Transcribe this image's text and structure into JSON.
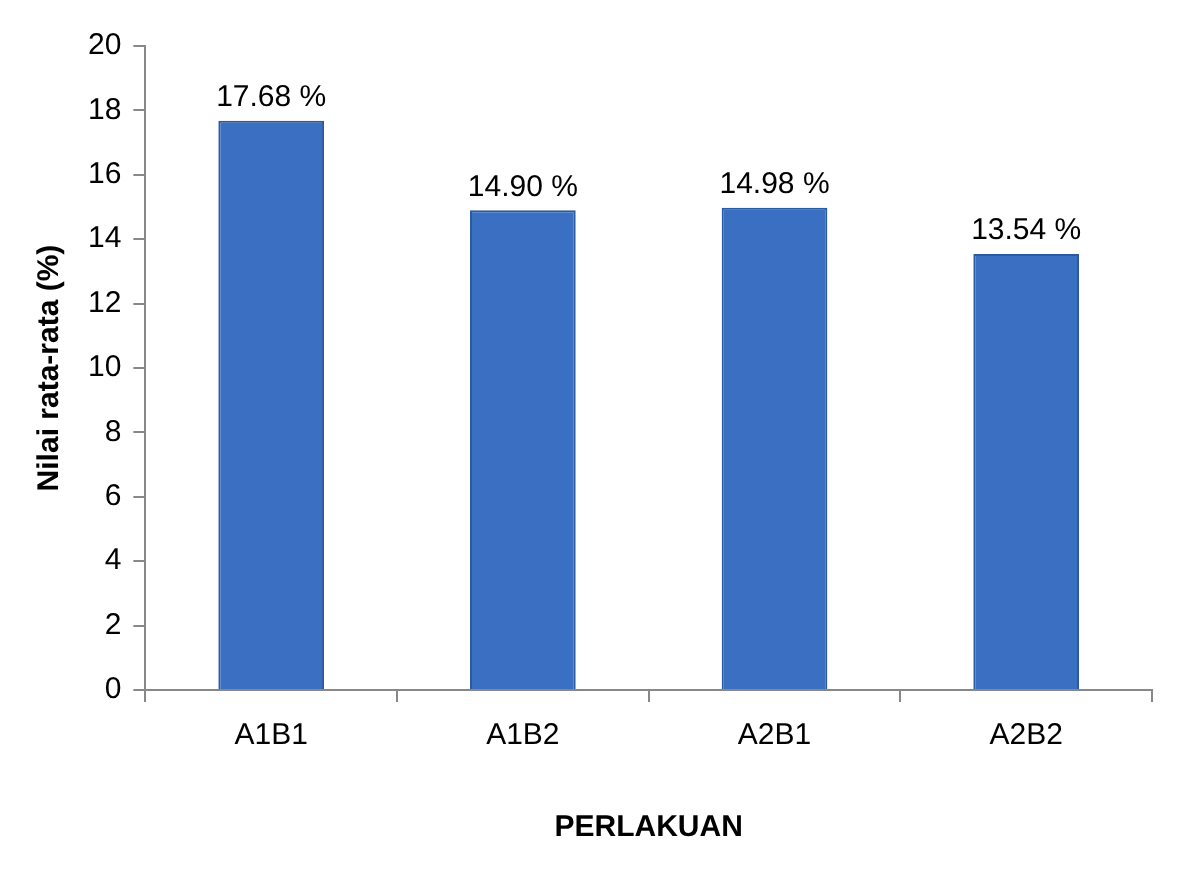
{
  "chart_data": {
    "type": "bar",
    "xlabel": "PERLAKUAN",
    "ylabel": "Nilai rata-rata (%)",
    "categories": [
      "A1B1",
      "A1B2",
      "A2B1",
      "A2B2"
    ],
    "values": [
      17.68,
      14.9,
      14.98,
      13.54
    ],
    "value_labels": [
      "17.68 %",
      "14.90 %",
      "14.98 %",
      "13.54 %"
    ],
    "color": "#3a6fc2",
    "ylim": [
      0,
      20
    ],
    "yticks": [
      0,
      2,
      4,
      6,
      8,
      10,
      12,
      14,
      16,
      18,
      20
    ]
  }
}
